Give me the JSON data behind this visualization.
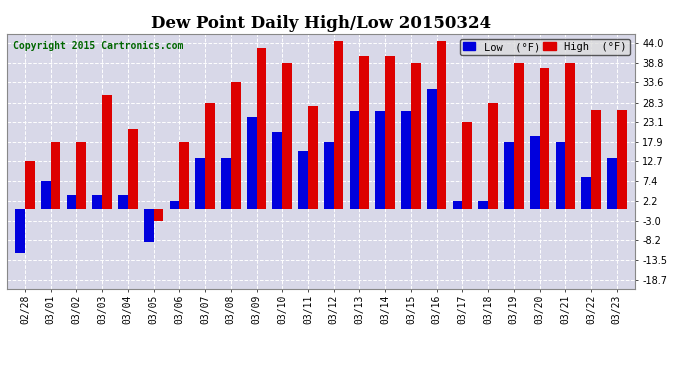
{
  "title": "Dew Point Daily High/Low 20150324",
  "copyright": "Copyright 2015 Cartronics.com",
  "dates": [
    "02/28",
    "03/01",
    "03/02",
    "03/03",
    "03/04",
    "03/05",
    "03/06",
    "03/07",
    "03/08",
    "03/09",
    "03/10",
    "03/11",
    "03/12",
    "03/13",
    "03/14",
    "03/15",
    "03/16",
    "03/17",
    "03/18",
    "03/19",
    "03/20",
    "03/21",
    "03/22",
    "03/23"
  ],
  "low_values": [
    -11.5,
    7.4,
    3.8,
    3.8,
    3.8,
    -8.5,
    2.2,
    13.5,
    13.5,
    24.5,
    20.5,
    15.5,
    17.9,
    26.1,
    26.1,
    26.1,
    32.0,
    2.2,
    2.2,
    17.9,
    19.5,
    17.9,
    8.6,
    13.5
  ],
  "high_values": [
    12.7,
    17.9,
    17.9,
    30.2,
    21.2,
    -3.0,
    17.9,
    28.3,
    33.6,
    42.8,
    38.8,
    27.5,
    44.6,
    40.5,
    40.5,
    38.8,
    44.6,
    23.1,
    28.3,
    38.8,
    37.5,
    38.8,
    26.2,
    26.2
  ],
  "low_color": "#0000dd",
  "high_color": "#dd0000",
  "bg_color": "#ffffff",
  "plot_bg_color": "#d8d8e8",
  "grid_color": "#ffffff",
  "ytick_labels": [
    "-18.7",
    "-13.5",
    "-8.2",
    "-3.0",
    "2.2",
    "7.4",
    "12.7",
    "17.9",
    "23.1",
    "28.3",
    "33.6",
    "38.8",
    "44.0"
  ],
  "ytick_values": [
    -18.7,
    -13.5,
    -8.2,
    -3.0,
    2.2,
    7.4,
    12.7,
    17.9,
    23.1,
    28.3,
    33.6,
    38.8,
    44.0
  ],
  "ylim": [
    -21.0,
    46.5
  ],
  "bar_width": 0.38,
  "title_fontsize": 12,
  "tick_fontsize": 7,
  "copyright_fontsize": 7,
  "legend_fontsize": 7.5
}
